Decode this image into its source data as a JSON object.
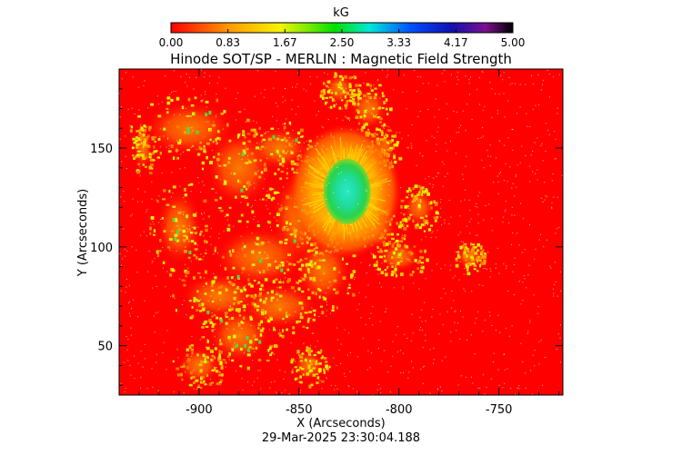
{
  "colorbar": {
    "unit": "kG",
    "tick_labels": [
      "0.00",
      "0.83",
      "1.67",
      "2.50",
      "3.33",
      "4.17",
      "5.00"
    ],
    "range": [
      0,
      5
    ]
  },
  "footer": {
    "timestamp": "29-Mar-2025 23:30:04.188"
  },
  "chart_data": {
    "type": "heatmap",
    "title": "Hinode SOT/SP - MERLIN : Magnetic Field Strength",
    "xlabel": "X (Arcseconds)",
    "ylabel": "Y (Arcseconds)",
    "xlim": [
      -940,
      -718
    ],
    "ylim": [
      25,
      190
    ],
    "x_ticks": [
      -900,
      -850,
      -800,
      -750
    ],
    "x_tick_labels": [
      "-900",
      "-850",
      "-800",
      "-750"
    ],
    "y_ticks": [
      50,
      100,
      150
    ],
    "y_tick_labels": [
      "50",
      "100",
      "150"
    ],
    "value_range": [
      0,
      5
    ],
    "value_unit": "kG",
    "colormap": "rainbow (red=0 kG, yellow, green, cyan, blue, purple, black=5 kG)",
    "background_value": 0.0,
    "features": [
      {
        "name": "sunspot umbra",
        "x": -826,
        "y": 128,
        "peak_kG": 2.6
      },
      {
        "name": "penumbra",
        "x": -827,
        "y": 128,
        "peak_kG": 1.6
      },
      {
        "name": "plage",
        "x": -875,
        "y": 90,
        "peak_kG": 1.2
      }
    ]
  }
}
